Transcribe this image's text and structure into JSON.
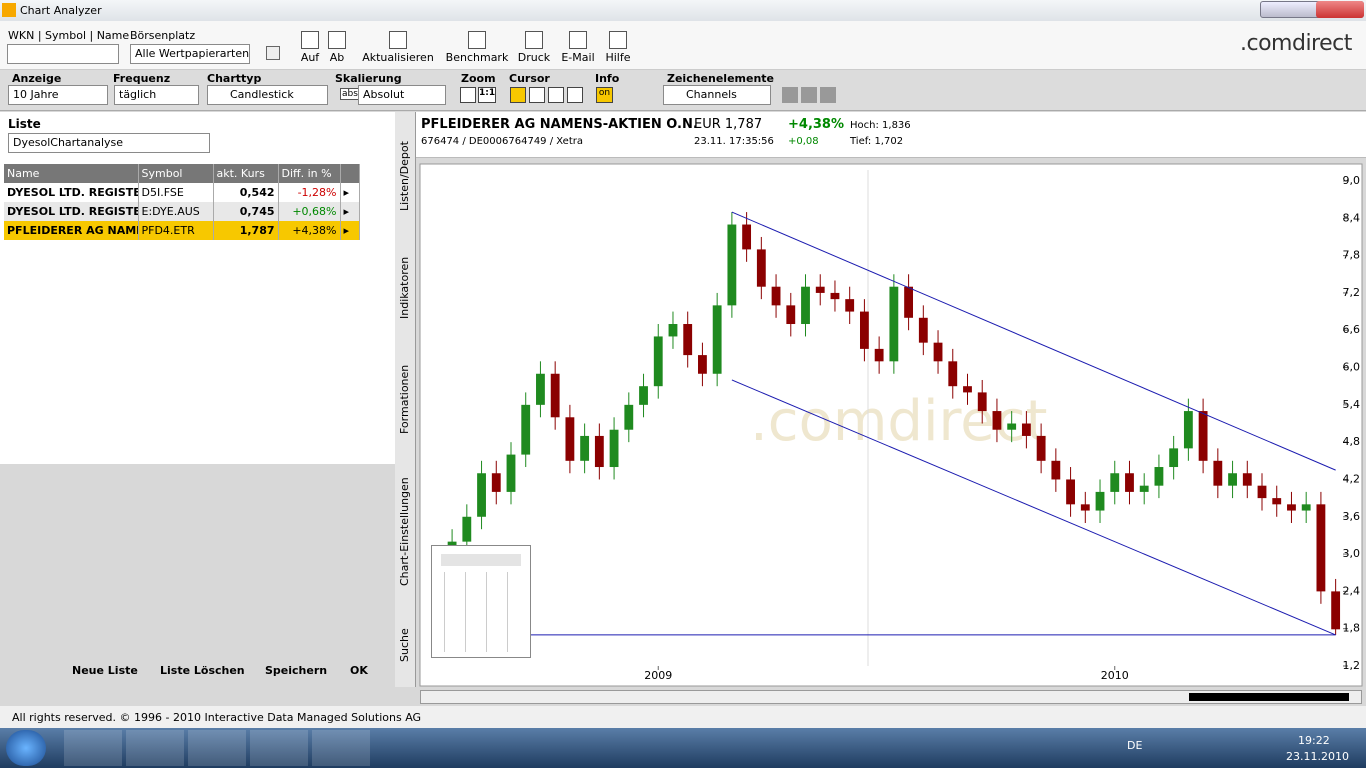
{
  "window": {
    "title": "Chart Analyzer"
  },
  "toolbar": {
    "search_label": "WKN | Symbol | Name",
    "exchange_label": "Börsenplatz",
    "exchange_value": "Alle Wertpapierarten",
    "buttons": [
      "Auf",
      "Ab",
      "Aktualisieren",
      "Benchmark",
      "Druck",
      "E-Mail",
      "Hilfe"
    ],
    "logo": ".comdirect"
  },
  "settings": {
    "fields": [
      {
        "label": "Anzeige",
        "value": "10 Jahre"
      },
      {
        "label": "Frequenz",
        "value": "täglich"
      },
      {
        "label": "Charttyp",
        "value": "Candlestick"
      },
      {
        "label": "Skalierung",
        "value": "Absolut"
      }
    ],
    "scale_icon": "abs",
    "zoom_label": "Zoom",
    "zoom_button": "1:1",
    "cursor_label": "Cursor",
    "info_label": "Info",
    "info_value": "on",
    "drawing_label": "Zeichenelemente",
    "drawing_value": "Channels"
  },
  "list": {
    "title": "Liste",
    "selected": "DyesolChartanalyse",
    "columns": [
      "Name",
      "Symbol",
      "akt. Kurs",
      "Diff. in %"
    ],
    "rows": [
      [
        "DYESOL LTD. REGISTER...",
        "D5I.FSE",
        "0,542",
        "-1,28%"
      ],
      [
        "DYESOL LTD. REGISTER...",
        "E:DYE.AUS",
        "0,745",
        "+0,68%"
      ],
      [
        "PFLEIDERER AG NAMEN...",
        "PFD4.ETR",
        "1,787",
        "+4,38%"
      ]
    ],
    "buttons": [
      "Neue Liste",
      "Liste Löschen",
      "Speichern",
      "OK"
    ]
  },
  "side_tabs": [
    "Listen/Depot",
    "Indikatoren",
    "Formationen",
    "Chart-Einstellungen",
    "Suche"
  ],
  "quote": {
    "name": "PFLEIDERER AG NAMENS-AKTIEN O.N.",
    "id_line": "676474 / DE0006764749 / Xetra",
    "price": "EUR 1,787",
    "time": "23.11. 17:35:56",
    "change_pct": "+4,38%",
    "change": "+0,08",
    "high": "Hoch: 1,836",
    "low": "Tief: 1,702"
  },
  "chart_data": {
    "type": "candlestick",
    "watermark": ".comdirect",
    "categories": [
      null,
      null,
      null,
      null,
      null,
      null,
      null,
      null,
      null,
      null,
      null,
      null,
      null,
      null,
      null,
      "2009",
      null,
      null,
      null,
      null,
      null,
      null,
      null,
      null,
      null,
      null,
      null,
      null,
      null,
      null,
      null,
      null,
      null,
      null,
      null,
      null,
      null,
      null,
      null,
      null,
      null,
      null,
      null,
      null,
      null,
      null,
      "2010",
      null,
      null,
      null,
      null,
      null,
      null,
      null,
      null,
      null,
      null,
      null,
      null,
      null,
      null,
      null
    ],
    "open": [
      2.9,
      2.6,
      3.2,
      3.6,
      4.3,
      4.0,
      4.6,
      5.4,
      5.9,
      5.2,
      4.5,
      4.9,
      4.4,
      5.0,
      5.4,
      5.7,
      6.5,
      6.7,
      6.2,
      5.9,
      7.0,
      8.3,
      7.9,
      7.3,
      7.0,
      6.7,
      7.3,
      7.2,
      7.1,
      6.9,
      6.3,
      6.1,
      7.3,
      6.8,
      6.4,
      6.1,
      5.7,
      5.6,
      5.3,
      5.0,
      5.1,
      4.9,
      4.5,
      4.2,
      3.8,
      3.7,
      4.0,
      4.3,
      4.0,
      4.1,
      4.4,
      4.7,
      5.3,
      4.5,
      4.1,
      4.3,
      4.1,
      3.9,
      3.8,
      3.7,
      3.8,
      2.4
    ],
    "high": [
      3.1,
      3.4,
      3.8,
      4.5,
      4.5,
      4.8,
      5.6,
      6.1,
      6.1,
      5.4,
      5.1,
      5.1,
      5.2,
      5.6,
      5.9,
      6.7,
      6.9,
      6.9,
      6.4,
      7.2,
      8.5,
      8.5,
      8.1,
      7.5,
      7.2,
      7.5,
      7.5,
      7.4,
      7.3,
      7.1,
      6.5,
      7.5,
      7.5,
      7.0,
      6.6,
      6.3,
      5.9,
      5.8,
      5.5,
      5.3,
      5.3,
      5.1,
      4.7,
      4.4,
      4.0,
      4.2,
      4.5,
      4.5,
      4.3,
      4.6,
      4.9,
      5.5,
      5.5,
      4.7,
      4.5,
      4.5,
      4.3,
      4.1,
      4.0,
      4.0,
      4.0,
      2.6
    ],
    "low": [
      2.4,
      2.4,
      3.0,
      3.4,
      3.8,
      3.8,
      4.4,
      5.2,
      5.0,
      4.3,
      4.3,
      4.2,
      4.2,
      4.8,
      5.2,
      5.5,
      6.3,
      6.0,
      5.7,
      5.7,
      6.8,
      7.7,
      7.1,
      6.8,
      6.5,
      6.5,
      7.0,
      6.9,
      6.7,
      6.1,
      5.9,
      5.9,
      6.6,
      6.2,
      5.9,
      5.5,
      5.4,
      5.1,
      4.8,
      4.8,
      4.7,
      4.3,
      4.0,
      3.6,
      3.5,
      3.5,
      3.8,
      3.8,
      3.8,
      3.9,
      4.2,
      4.5,
      4.3,
      3.9,
      3.9,
      3.9,
      3.7,
      3.6,
      3.5,
      3.5,
      2.2,
      1.7
    ],
    "close": [
      2.6,
      3.2,
      3.6,
      4.3,
      4.0,
      4.6,
      5.4,
      5.9,
      5.2,
      4.5,
      4.9,
      4.4,
      5.0,
      5.4,
      5.7,
      6.5,
      6.7,
      6.2,
      5.9,
      7.0,
      8.3,
      7.9,
      7.3,
      7.0,
      6.7,
      7.3,
      7.2,
      7.1,
      6.9,
      6.3,
      6.1,
      7.3,
      6.8,
      6.4,
      6.1,
      5.7,
      5.6,
      5.3,
      5.0,
      5.1,
      4.9,
      4.5,
      4.2,
      3.8,
      3.7,
      4.0,
      4.3,
      4.0,
      4.1,
      4.4,
      4.7,
      5.3,
      4.5,
      4.1,
      4.3,
      4.1,
      3.9,
      3.8,
      3.7,
      3.8,
      2.4,
      1.79
    ],
    "up_color": "#1f8a1f",
    "down_color": "#8b0000",
    "channels": [
      {
        "x": [
          20,
          61
        ],
        "y": [
          8.5,
          4.35
        ]
      },
      {
        "x": [
          20,
          61
        ],
        "y": [
          5.8,
          1.7
        ]
      },
      {
        "x": [
          0,
          61
        ],
        "y": [
          1.7,
          1.7
        ]
      }
    ],
    "channel_color": "#1c1cb0",
    "ylim": [
      1.2,
      9.0
    ],
    "yticks": [
      {
        "value": 1.2,
        "label": "1,2"
      },
      {
        "value": 1.8,
        "label": "1,8"
      },
      {
        "value": 2.4,
        "label": "2,4"
      },
      {
        "value": 3.0,
        "label": "3,0"
      },
      {
        "value": 3.6,
        "label": "3,6"
      },
      {
        "value": 4.2,
        "label": "4,2"
      },
      {
        "value": 4.8,
        "label": "4,8"
      },
      {
        "value": 5.4,
        "label": "5,4"
      },
      {
        "value": 6.0,
        "label": "6,0"
      },
      {
        "value": 6.6,
        "label": "6,6"
      },
      {
        "value": 7.2,
        "label": "7,2"
      },
      {
        "value": 7.8,
        "label": "7,8"
      },
      {
        "value": 8.4,
        "label": "8,4"
      },
      {
        "value": 9.0,
        "label": "9,0"
      }
    ],
    "grid": false
  },
  "footer": "All rights reserved. © 1996 - 2010 Interactive Data Managed Solutions AG",
  "taskbar": {
    "language": "DE",
    "time": "19:22",
    "date": "23.11.2010"
  }
}
